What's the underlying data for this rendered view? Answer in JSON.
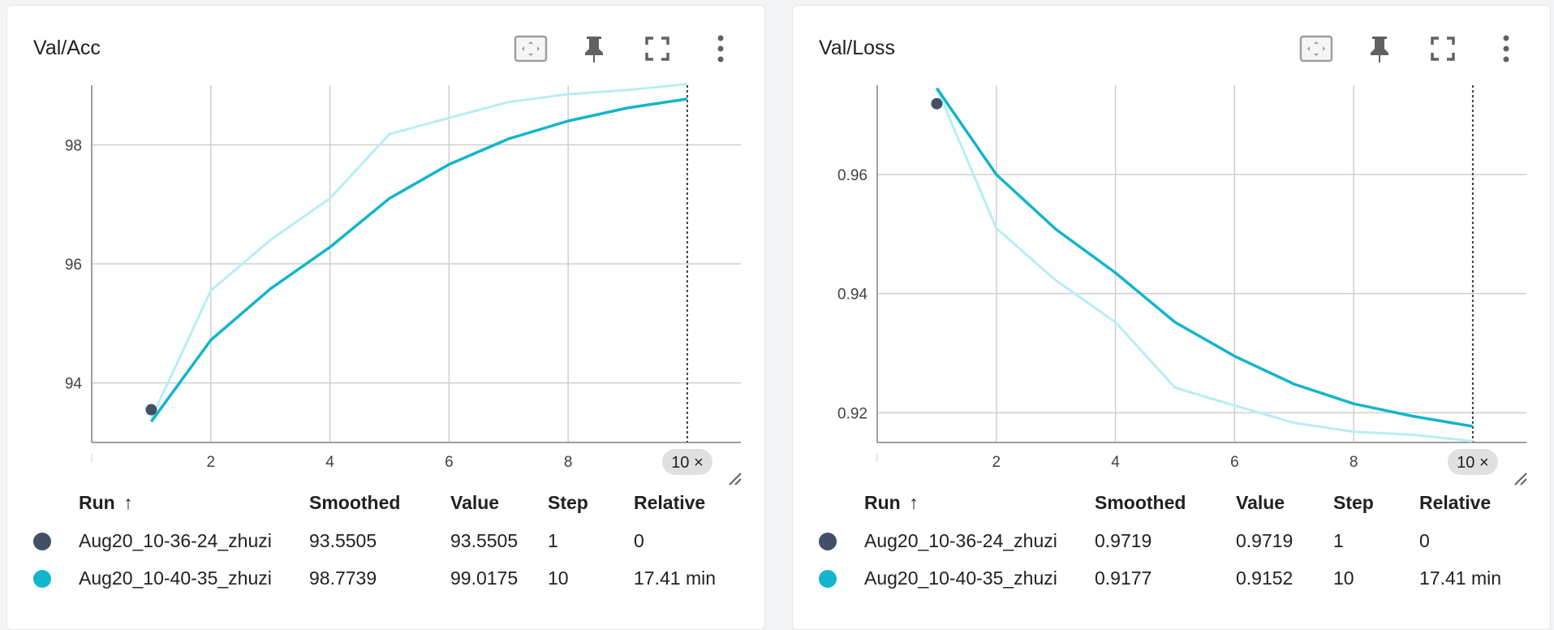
{
  "colors": {
    "run1": "#425066",
    "run2": "#12b5cb",
    "smoothed_line": "#12b5cb",
    "raw_line": "#b6eef5",
    "grid": "#cfcfcf",
    "axis": "#9e9e9e"
  },
  "toolbar_icons": [
    "fit-domain-icon",
    "pin-icon",
    "fullscreen-icon",
    "more-vert-icon"
  ],
  "columns": {
    "run": "Run",
    "sort_arrow": "↑",
    "smoothed": "Smoothed",
    "value": "Value",
    "step": "Step",
    "relative": "Relative"
  },
  "cards": [
    {
      "title": "Val/Acc",
      "step_badge": "10 ×",
      "rows": [
        {
          "run": "Aug20_10-36-24_zhuzi",
          "smoothed": "93.5505",
          "value": "93.5505",
          "step": "1",
          "relative": "0"
        },
        {
          "run": "Aug20_10-40-35_zhuzi",
          "smoothed": "98.7739",
          "value": "99.0175",
          "step": "10",
          "relative": "17.41 min"
        }
      ]
    },
    {
      "title": "Val/Loss",
      "step_badge": "10 ×",
      "rows": [
        {
          "run": "Aug20_10-36-24_zhuzi",
          "smoothed": "0.9719",
          "value": "0.9719",
          "step": "1",
          "relative": "0"
        },
        {
          "run": "Aug20_10-40-35_zhuzi",
          "smoothed": "0.9177",
          "value": "0.9152",
          "step": "10",
          "relative": "17.41 min"
        }
      ]
    }
  ],
  "chart_data": [
    {
      "type": "line",
      "title": "Val/Acc",
      "xlabel": "",
      "ylabel": "",
      "xlim": [
        0,
        10.9
      ],
      "ylim": [
        93.0,
        99.0
      ],
      "xticks": [
        2,
        4,
        6,
        8
      ],
      "yticks": [
        94,
        96,
        98
      ],
      "grid": true,
      "series": [
        {
          "name": "Aug20_10-40-35_zhuzi",
          "style": "raw",
          "x": [
            1,
            2,
            3,
            4,
            5,
            6,
            7,
            8,
            9,
            10
          ],
          "y": [
            93.4,
            95.55,
            96.4,
            97.1,
            98.18,
            98.45,
            98.72,
            98.85,
            98.92,
            99.02
          ]
        },
        {
          "name": "Aug20_10-40-35_zhuzi",
          "style": "smoothed",
          "x": [
            1,
            2,
            3,
            4,
            5,
            6,
            7,
            8,
            9,
            10
          ],
          "y": [
            93.35,
            94.72,
            95.58,
            96.28,
            97.1,
            97.67,
            98.1,
            98.4,
            98.62,
            98.77
          ]
        },
        {
          "name": "Aug20_10-36-24_zhuzi",
          "style": "point",
          "x": [
            1
          ],
          "y": [
            93.55
          ]
        }
      ],
      "cursor_step": 10
    },
    {
      "type": "line",
      "title": "Val/Loss",
      "xlabel": "",
      "ylabel": "",
      "xlim": [
        0,
        10.9
      ],
      "ylim": [
        0.915,
        0.975
      ],
      "xticks": [
        2,
        4,
        6,
        8
      ],
      "yticks": [
        0.92,
        0.94,
        0.96
      ],
      "grid": true,
      "series": [
        {
          "name": "Aug20_10-40-35_zhuzi",
          "style": "raw",
          "x": [
            1,
            2,
            3,
            4,
            5,
            6,
            7,
            8,
            9,
            10
          ],
          "y": [
            0.9745,
            0.951,
            0.9422,
            0.9352,
            0.9242,
            0.9212,
            0.9183,
            0.9168,
            0.9163,
            0.9152
          ]
        },
        {
          "name": "Aug20_10-40-35_zhuzi",
          "style": "smoothed",
          "x": [
            1,
            2,
            3,
            4,
            5,
            6,
            7,
            8,
            9,
            10
          ],
          "y": [
            0.9745,
            0.96,
            0.9508,
            0.9435,
            0.9352,
            0.9295,
            0.9248,
            0.9215,
            0.9194,
            0.9177
          ]
        },
        {
          "name": "Aug20_10-36-24_zhuzi",
          "style": "point",
          "x": [
            1
          ],
          "y": [
            0.9719
          ]
        }
      ],
      "cursor_step": 10
    }
  ]
}
